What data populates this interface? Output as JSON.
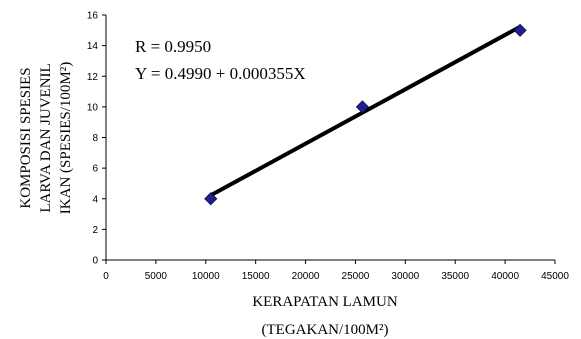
{
  "chart_data": {
    "type": "scatter",
    "xlabel_lines": [
      "KERAPATAN LAMUN",
      "(TEGAKAN/100M²)"
    ],
    "ylabel_lines": [
      "KOMPOSISI SPESIES",
      "LARVA DAN JUVENIL",
      "IKAN (SPESIES/100M²)"
    ],
    "xlim": [
      0,
      45000
    ],
    "ylim": [
      0,
      16
    ],
    "xticks": [
      "0",
      "5000",
      "10000",
      "15000",
      "20000",
      "25000",
      "30000",
      "35000",
      "40000",
      "45000"
    ],
    "yticks": [
      "0",
      "2",
      "4",
      "6",
      "8",
      "10",
      "12",
      "14",
      "16"
    ],
    "grid": false,
    "legend": "none",
    "series": [
      {
        "points": [
          {
            "x": 10500,
            "y": 4
          },
          {
            "x": 25700,
            "y": 10
          },
          {
            "x": 41500,
            "y": 15
          }
        ],
        "marker": "diamond",
        "color": "#1f1f8f"
      }
    ],
    "trendline": {
      "x_range": [
        10500,
        41500
      ],
      "intercept": 0.499,
      "slope": 0.000355,
      "color": "#000000"
    },
    "annotations": [
      "R = 0.9950",
      "Y = 0.4990 + 0.000355X"
    ]
  }
}
